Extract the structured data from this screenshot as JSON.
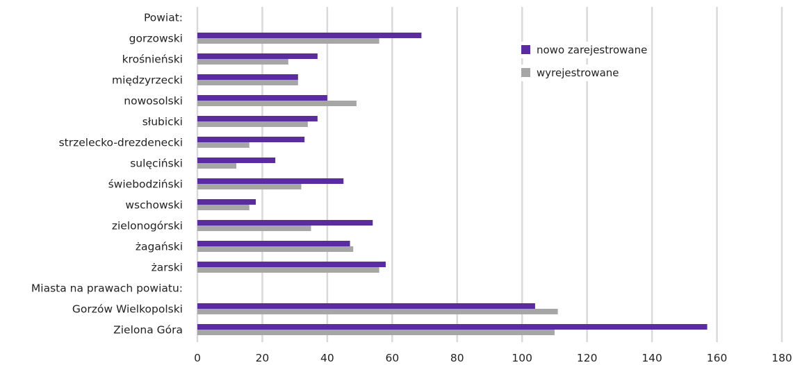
{
  "chart_data": {
    "type": "bar",
    "orientation": "horizontal",
    "xlim": [
      0,
      180
    ],
    "x_ticks": [
      "0",
      "20",
      "40",
      "60",
      "80",
      "100",
      "120",
      "140",
      "160",
      "180"
    ],
    "grid": "vertical",
    "legend_position": "top-right",
    "categories": [
      "Powiat:",
      "gorzowski",
      "krośnieński",
      "międzyrzecki",
      "nowosolski",
      "słubicki",
      "strzelecko-drezdenecki",
      "sulęciński",
      "świebodziński",
      "wschowski",
      "zielonogórski",
      "żagański",
      "żarski",
      "Miasta na prawach powiatu:",
      "Gorzów Wielkopolski",
      "Zielona Góra"
    ],
    "series": [
      {
        "name": "nowo zarejestrowane",
        "color": "#5b2c9f",
        "values": [
          null,
          69,
          37,
          31,
          40,
          37,
          33,
          24,
          45,
          18,
          54,
          47,
          58,
          null,
          104,
          157
        ]
      },
      {
        "name": "wyrejestrowane",
        "color": "#a6a6a6",
        "values": [
          null,
          56,
          28,
          31,
          49,
          34,
          16,
          12,
          32,
          16,
          35,
          48,
          56,
          null,
          111,
          110
        ]
      }
    ]
  }
}
